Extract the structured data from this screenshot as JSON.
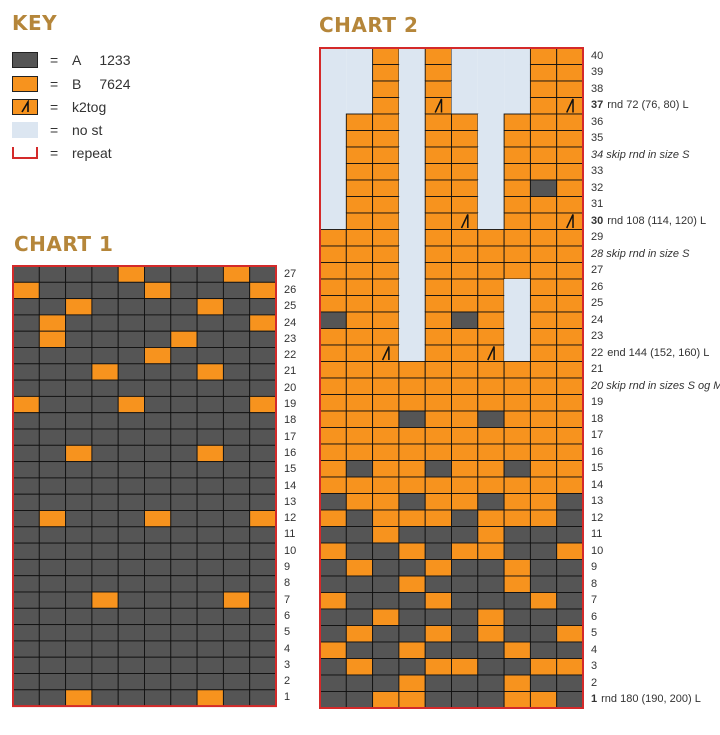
{
  "key": {
    "title": "KEY",
    "items": [
      {
        "symbol": "A",
        "eq": "=",
        "label": "A",
        "code": "1233",
        "color": "#555555"
      },
      {
        "symbol": "B",
        "eq": "=",
        "label": "B",
        "code": "7624",
        "color": "#f7931e"
      },
      {
        "symbol": "k2tog",
        "eq": "=",
        "label": "k2tog",
        "code": "",
        "color": "#f7931e"
      },
      {
        "symbol": "nost",
        "eq": "=",
        "label": "no st",
        "code": "",
        "color": "#dce6f1"
      },
      {
        "symbol": "repeat",
        "eq": "=",
        "label": "repeat",
        "code": "",
        "color": "#d42a2a"
      }
    ]
  },
  "chart1": {
    "title": "CHART 1",
    "cols": 10,
    "rows": [
      {
        "n": "27",
        "cells": "AAAABAAABA"
      },
      {
        "n": "26",
        "cells": "BAAAABAAAB"
      },
      {
        "n": "25",
        "cells": "AABAAAABAA"
      },
      {
        "n": "24",
        "cells": "ABAAAAAAAB"
      },
      {
        "n": "23",
        "cells": "ABAAAABAAA"
      },
      {
        "n": "22",
        "cells": "AAAAABAAAA"
      },
      {
        "n": "21",
        "cells": "AAABAAABAA"
      },
      {
        "n": "20",
        "cells": "AAAAAAAAAA"
      },
      {
        "n": "19",
        "cells": "BAAABAAAAB"
      },
      {
        "n": "18",
        "cells": "AAAAAAAAAA"
      },
      {
        "n": "17",
        "cells": "AAAAAAAAAA"
      },
      {
        "n": "16",
        "cells": "AABAAAABAA"
      },
      {
        "n": "15",
        "cells": "AAAAAAAAAA"
      },
      {
        "n": "14",
        "cells": "AAAAAAAAAA"
      },
      {
        "n": "13",
        "cells": "AAAAAAAAAA"
      },
      {
        "n": "12",
        "cells": "ABAAABAAAB"
      },
      {
        "n": "11",
        "cells": "AAAAAAAAAA"
      },
      {
        "n": "10",
        "cells": "AAAAAAAAAA"
      },
      {
        "n": "9",
        "cells": "AAAAAAAAAA"
      },
      {
        "n": "8",
        "cells": "AAAAAAAAAA"
      },
      {
        "n": "7",
        "cells": "AAABAAAABA"
      },
      {
        "n": "6",
        "cells": "AAAAAAAAAA"
      },
      {
        "n": "5",
        "cells": "AAAAAAAAAA"
      },
      {
        "n": "4",
        "cells": "AAAAAAAAAA"
      },
      {
        "n": "3",
        "cells": "AAAAAAAAAA"
      },
      {
        "n": "2",
        "cells": "AAAAAAAAAA"
      },
      {
        "n": "1",
        "cells": "AABAAAABAA"
      }
    ]
  },
  "chart2": {
    "title": "CHART 2",
    "cols": 10,
    "rows": [
      {
        "n": "40",
        "cells": "..B.B...BB",
        "note": ""
      },
      {
        "n": "39",
        "cells": "..B.B...BB",
        "note": ""
      },
      {
        "n": "38",
        "cells": "..B.B...BB",
        "note": ""
      },
      {
        "n": "37",
        "cells": "..B.K...BK",
        "note": "rnd 72 (76, 80) L",
        "bold": true
      },
      {
        "n": "36",
        "cells": ".BB.BB.BBB",
        "note": ""
      },
      {
        "n": "35",
        "cells": ".BB.BB.BBB",
        "note": ""
      },
      {
        "n": "",
        "cells": ".BB.BB.BBB",
        "note": "34 skip rnd in size S",
        "italic": true
      },
      {
        "n": "33",
        "cells": ".BB.BB.BBB",
        "note": ""
      },
      {
        "n": "32",
        "cells": ".BB.BB.BAB",
        "note": ""
      },
      {
        "n": "31",
        "cells": ".BB.BB.BBB",
        "note": ""
      },
      {
        "n": "30",
        "cells": ".BB.BK.BBK",
        "note": "rnd 108 (114, 120) L",
        "bold": true
      },
      {
        "n": "29",
        "cells": "BBB.BBBBBB",
        "note": ""
      },
      {
        "n": "",
        "cells": "BBB.BBBBBB",
        "note": "28 skip rnd in size S",
        "italic": true
      },
      {
        "n": "27",
        "cells": "BBB.BBBBBB",
        "note": ""
      },
      {
        "n": "26",
        "cells": "BBB.BBB.BB",
        "note": ""
      },
      {
        "n": "25",
        "cells": "BBB.BBB.BB",
        "note": ""
      },
      {
        "n": "24",
        "cells": "ABB.BAB.BB",
        "note": ""
      },
      {
        "n": "23",
        "cells": "BBB.BBB.BB",
        "note": ""
      },
      {
        "n": "22",
        "cells": "BBK.BBK.BB",
        "note": "end 144 (152, 160) L"
      },
      {
        "n": "21",
        "cells": "BBBBBBBBBB",
        "note": ""
      },
      {
        "n": "",
        "cells": "BBBBBBBBBB",
        "note": "20 skip rnd in sizes S og M",
        "italic": true
      },
      {
        "n": "19",
        "cells": "BBBBBBBBBB",
        "note": ""
      },
      {
        "n": "18",
        "cells": "BBBABBABBB",
        "note": ""
      },
      {
        "n": "17",
        "cells": "BBBBBBBBBB",
        "note": ""
      },
      {
        "n": "16",
        "cells": "BBBBBBBBBB",
        "note": ""
      },
      {
        "n": "15",
        "cells": "BABBABBABB",
        "note": ""
      },
      {
        "n": "14",
        "cells": "BBBBBBBBBB",
        "note": ""
      },
      {
        "n": "13",
        "cells": "ABBABBABBA",
        "note": ""
      },
      {
        "n": "12",
        "cells": "BABBBABBBA",
        "note": ""
      },
      {
        "n": "11",
        "cells": "AABAAABAAA",
        "note": ""
      },
      {
        "n": "10",
        "cells": "BAABABBAAB",
        "note": ""
      },
      {
        "n": "9",
        "cells": "ABAABAABAA",
        "note": ""
      },
      {
        "n": "8",
        "cells": "AAABAAABAA",
        "note": ""
      },
      {
        "n": "7",
        "cells": "BAAABAAABA",
        "note": ""
      },
      {
        "n": "6",
        "cells": "AABAAABAAA",
        "note": ""
      },
      {
        "n": "5",
        "cells": "ABAABABAAB",
        "note": ""
      },
      {
        "n": "4",
        "cells": "BAABAAABAA",
        "note": ""
      },
      {
        "n": "3",
        "cells": "ABAABBAABB",
        "note": ""
      },
      {
        "n": "2",
        "cells": "AAABAAABAA",
        "note": ""
      },
      {
        "n": "1",
        "cells": "AABBAAABBA",
        "note": "rnd 180 (190, 200) L",
        "bold": true
      }
    ]
  }
}
